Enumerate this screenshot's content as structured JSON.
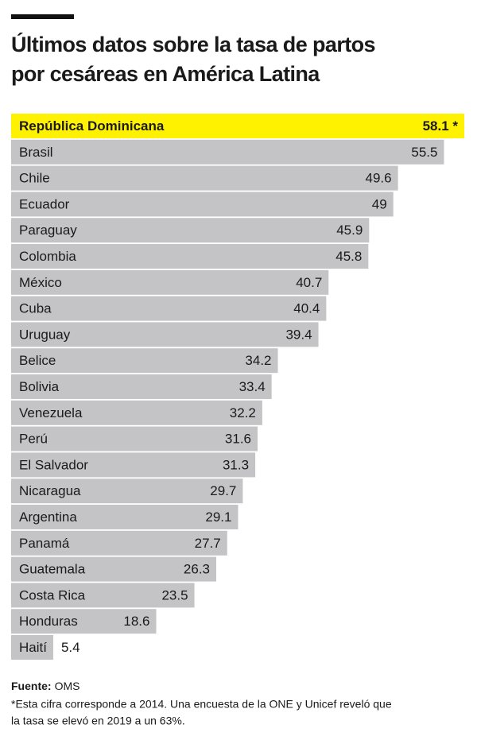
{
  "chart_data": {
    "type": "hbar",
    "title": [
      "Últimos datos sobre la tasa de partos",
      "por cesáreas en América Latina"
    ],
    "categories": [
      "República Dominicana",
      "Brasil",
      "Chile",
      "Ecuador",
      "Paraguay",
      "Colombia",
      "México",
      "Cuba",
      "Uruguay",
      "Belice",
      "Bolivia",
      "Venezuela",
      "Perú",
      "El Salvador",
      "Nicaragua",
      "Argentina",
      "Panamá",
      "Guatemala",
      "Costa Rica",
      "Honduras",
      "Haití"
    ],
    "values": [
      58.1,
      55.5,
      49.6,
      49,
      45.9,
      45.8,
      40.7,
      40.4,
      39.4,
      34.2,
      33.4,
      32.2,
      31.6,
      31.3,
      29.7,
      29.1,
      27.7,
      26.3,
      23.5,
      18.6,
      5.4
    ],
    "value_labels": [
      "58.1 *",
      "55.5",
      "49.6",
      "49",
      "45.9",
      "45.8",
      "40.7",
      "40.4",
      "39.4",
      "34.2",
      "33.4",
      "32.2",
      "31.6",
      "31.3",
      "29.7",
      "29.1",
      "27.7",
      "26.3",
      "23.5",
      "18.6",
      "5.4"
    ],
    "colors": [
      "#fff200",
      "#c4c4c6",
      "#c4c4c6",
      "#c4c4c6",
      "#c4c4c6",
      "#c4c4c6",
      "#c4c4c6",
      "#c4c4c6",
      "#c4c4c6",
      "#c4c4c6",
      "#c4c4c6",
      "#c4c4c6",
      "#c4c4c6",
      "#c4c4c6",
      "#c4c4c6",
      "#c4c4c6",
      "#c4c4c6",
      "#c4c4c6",
      "#c4c4c6",
      "#c4c4c6",
      "#c4c4c6"
    ],
    "source_label": "Fuente:",
    "source": "OMS",
    "note": [
      "*Esta cifra corresponde a 2014. Una encuesta de la ONE y Unicef reveló que",
      "la tasa se elevó en 2019 a un 63%."
    ]
  }
}
